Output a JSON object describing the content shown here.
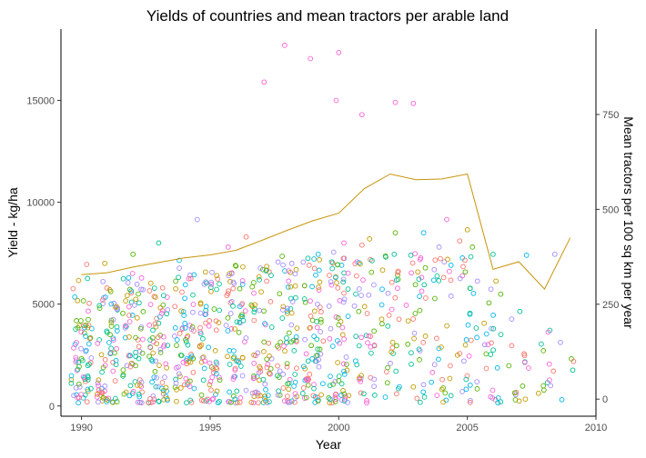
{
  "chart_data": {
    "type": "scatter",
    "title": "Yields of countries and mean tractors per arable land",
    "xlabel": "Year",
    "ylabel": "Yield - kg/ha",
    "y2label": "Mean tractors per 100 sq km per year",
    "xlim": [
      1989.2,
      2010
    ],
    "ylim": [
      -500,
      18500
    ],
    "y2lim": [
      -45,
      975
    ],
    "x_ticks": [
      1990,
      1995,
      2000,
      2005,
      2010
    ],
    "y_ticks": [
      0,
      5000,
      10000,
      15000
    ],
    "y2_ticks": [
      0,
      250,
      500,
      750
    ],
    "grid": false,
    "legend": "none",
    "point_colors": [
      "#F8766D",
      "#C49A00",
      "#53B400",
      "#00C094",
      "#00B6EB",
      "#A58AFF",
      "#FB61D7"
    ],
    "line_color": "#C8940A",
    "tractor_line": {
      "x": [
        1990,
        1991,
        1992,
        1993,
        1994,
        1995,
        1996,
        1997,
        1998,
        1999,
        2000,
        2001,
        2002,
        2003,
        2004,
        2005,
        2006,
        2007,
        2008,
        2009
      ],
      "y": [
        328,
        333,
        348,
        360,
        372,
        380,
        392,
        418,
        445,
        470,
        490,
        555,
        593,
        578,
        580,
        593,
        342,
        362,
        290,
        425
      ]
    },
    "outliers": {
      "x": [
        1997.1,
        1997.9,
        1998.9,
        1999.9,
        2000.0,
        2000.9,
        2002.2,
        2002.9
      ],
      "y": [
        15900,
        17700,
        17050,
        15000,
        17350,
        14300,
        14900,
        14850
      ],
      "color": "#FB61D7"
    },
    "high_points": {
      "x": [
        1990.2,
        1990.9,
        1992.0,
        1993.0,
        1993.8,
        1994.5,
        1995.7,
        1996.4,
        1997.2,
        1997.8,
        1998.8,
        1999.2,
        1999.8,
        2000.2,
        2000.9,
        2001.2,
        2002.2,
        2002.8,
        2003.3,
        2003.9,
        2004.2,
        2004.7,
        2005.0,
        2005.2,
        2006.0,
        2007.3,
        2008.4
      ],
      "y": [
        6950,
        7000,
        7450,
        8000,
        7150,
        9150,
        7800,
        8300,
        6850,
        7350,
        7250,
        7450,
        7550,
        8000,
        7900,
        8200,
        8500,
        7400,
        8500,
        7800,
        9150,
        8100,
        8650,
        7800,
        7450,
        7400,
        7450
      ]
    },
    "dense_cloud": {
      "description_free": true,
      "years": [
        1990,
        1991,
        1992,
        1993,
        1994,
        1995,
        1996,
        1997,
        1998,
        1999,
        2000,
        2001,
        2002,
        2003,
        2004,
        2005,
        2006,
        2007,
        2008,
        2009
      ],
      "points_per_year": [
        70,
        70,
        70,
        70,
        70,
        70,
        70,
        70,
        70,
        70,
        70,
        45,
        35,
        35,
        32,
        32,
        25,
        16,
        12,
        5
      ],
      "max_y_per_year": [
        6300,
        6500,
        6600,
        6700,
        6800,
        6900,
        7000,
        7100,
        7200,
        7300,
        7400,
        7400,
        7600,
        7700,
        7500,
        7600,
        6200,
        5000,
        4000,
        3500
      ],
      "jitter_x": 0.4
    }
  }
}
